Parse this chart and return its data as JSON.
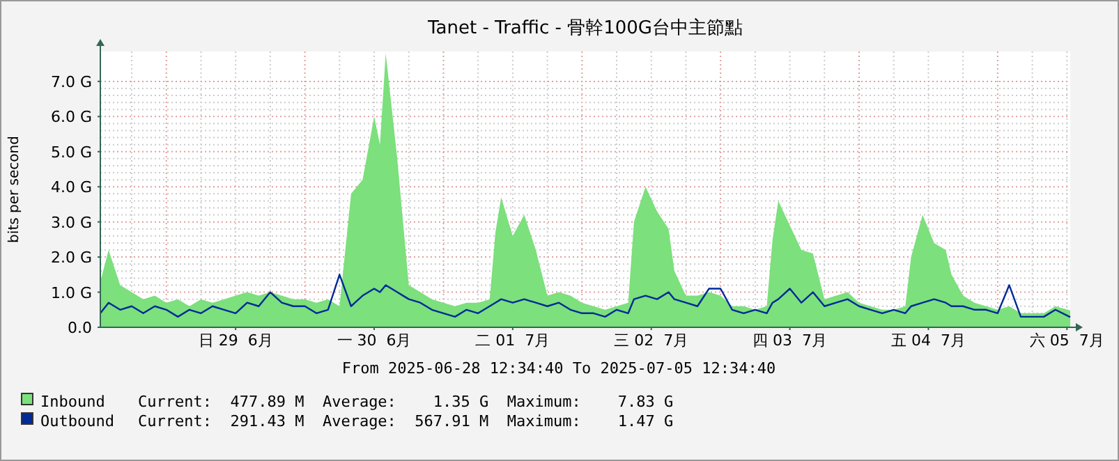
{
  "chart_data": {
    "type": "area",
    "title": "Tanet - Traffic - 骨幹100G台中主節點",
    "ylabel": "bits per second",
    "xlabel": "From 2025-06-28 12:34:40 To 2025-07-05 12:34:40",
    "xlim": [
      "2025-06-28T12:34",
      "2025-07-05T12:34"
    ],
    "xticks": [
      {
        "value": "2025-06-29T12:00",
        "label": "日 29  6月"
      },
      {
        "value": "2025-06-30T12:00",
        "label": "一 30  6月"
      },
      {
        "value": "2025-07-01T12:00",
        "label": "二 01  7月"
      },
      {
        "value": "2025-07-02T12:00",
        "label": "三 02  7月"
      },
      {
        "value": "2025-07-03T12:00",
        "label": "四 03  7月"
      },
      {
        "value": "2025-07-04T12:00",
        "label": "五 04  7月"
      },
      {
        "value": "2025-07-05T12:00",
        "label": "六 05  7月"
      }
    ],
    "ylim": [
      0,
      7.85
    ],
    "yticks": [
      {
        "value": 0,
        "label": "0.0"
      },
      {
        "value": 1,
        "label": "1.0 G"
      },
      {
        "value": 2,
        "label": "2.0 G"
      },
      {
        "value": 3,
        "label": "3.0 G"
      },
      {
        "value": 4,
        "label": "4.0 G"
      },
      {
        "value": 5,
        "label": "5.0 G"
      },
      {
        "value": 6,
        "label": "6.0 G"
      },
      {
        "value": 7,
        "label": "7.0 G"
      }
    ],
    "grid": true,
    "legend": "bottom",
    "x": [
      "2025-06-28T12:34",
      "2025-06-28T14:00",
      "2025-06-28T16:00",
      "2025-06-28T18:00",
      "2025-06-28T20:00",
      "2025-06-28T22:00",
      "2025-06-29T00:00",
      "2025-06-29T02:00",
      "2025-06-29T04:00",
      "2025-06-29T06:00",
      "2025-06-29T08:00",
      "2025-06-29T10:00",
      "2025-06-29T12:00",
      "2025-06-29T14:00",
      "2025-06-29T16:00",
      "2025-06-29T18:00",
      "2025-06-29T20:00",
      "2025-06-29T22:00",
      "2025-06-30T00:00",
      "2025-06-30T02:00",
      "2025-06-30T04:00",
      "2025-06-30T06:00",
      "2025-06-30T08:00",
      "2025-06-30T10:00",
      "2025-06-30T12:00",
      "2025-06-30T13:00",
      "2025-06-30T14:00",
      "2025-06-30T16:00",
      "2025-06-30T17:00",
      "2025-06-30T18:00",
      "2025-06-30T20:00",
      "2025-06-30T22:00",
      "2025-07-01T00:00",
      "2025-07-01T02:00",
      "2025-07-01T04:00",
      "2025-07-01T06:00",
      "2025-07-01T08:00",
      "2025-07-01T09:00",
      "2025-07-01T10:00",
      "2025-07-01T12:00",
      "2025-07-01T14:00",
      "2025-07-01T16:00",
      "2025-07-01T18:00",
      "2025-07-01T20:00",
      "2025-07-01T22:00",
      "2025-07-02T00:00",
      "2025-07-02T02:00",
      "2025-07-02T04:00",
      "2025-07-02T06:00",
      "2025-07-02T08:00",
      "2025-07-02T09:00",
      "2025-07-02T11:00",
      "2025-07-02T13:00",
      "2025-07-02T15:00",
      "2025-07-02T16:00",
      "2025-07-02T18:00",
      "2025-07-02T20:00",
      "2025-07-02T22:00",
      "2025-07-03T00:00",
      "2025-07-03T02:00",
      "2025-07-03T04:00",
      "2025-07-03T06:00",
      "2025-07-03T08:00",
      "2025-07-03T09:00",
      "2025-07-03T10:00",
      "2025-07-03T12:00",
      "2025-07-03T14:00",
      "2025-07-03T16:00",
      "2025-07-03T18:00",
      "2025-07-03T20:00",
      "2025-07-03T22:00",
      "2025-07-04T00:00",
      "2025-07-04T02:00",
      "2025-07-04T04:00",
      "2025-07-04T06:00",
      "2025-07-04T08:00",
      "2025-07-04T09:00",
      "2025-07-04T11:00",
      "2025-07-04T13:00",
      "2025-07-04T15:00",
      "2025-07-04T16:00",
      "2025-07-04T18:00",
      "2025-07-04T20:00",
      "2025-07-04T22:00",
      "2025-07-05T00:00",
      "2025-07-05T02:00",
      "2025-07-05T04:00",
      "2025-07-05T06:00",
      "2025-07-05T08:00",
      "2025-07-05T10:00",
      "2025-07-05T12:34"
    ],
    "series": [
      {
        "name": "Inbound",
        "color": "#7ce07c",
        "values": [
          1.3,
          2.2,
          1.2,
          1.0,
          0.8,
          0.9,
          0.7,
          0.8,
          0.6,
          0.8,
          0.7,
          0.8,
          0.9,
          1.0,
          0.9,
          1.0,
          0.9,
          0.8,
          0.8,
          0.7,
          0.8,
          0.6,
          3.8,
          4.2,
          6.0,
          5.2,
          7.8,
          4.8,
          3.0,
          1.2,
          1.0,
          0.8,
          0.7,
          0.6,
          0.7,
          0.7,
          0.8,
          2.7,
          3.7,
          2.6,
          3.2,
          2.2,
          0.9,
          1.0,
          0.9,
          0.7,
          0.6,
          0.5,
          0.6,
          0.7,
          3.0,
          4.0,
          3.3,
          2.8,
          1.6,
          0.9,
          0.9,
          1.0,
          0.9,
          0.6,
          0.6,
          0.5,
          0.6,
          2.5,
          3.6,
          2.9,
          2.2,
          2.1,
          0.8,
          0.9,
          1.0,
          0.7,
          0.6,
          0.5,
          0.5,
          0.6,
          2.0,
          3.2,
          2.4,
          2.2,
          1.5,
          0.9,
          0.7,
          0.6,
          0.5,
          0.6,
          0.4,
          0.4,
          0.4,
          0.6,
          0.48
        ]
      },
      {
        "name": "Outbound",
        "type": "line",
        "color": "#002a97",
        "values": [
          0.4,
          0.7,
          0.5,
          0.6,
          0.4,
          0.6,
          0.5,
          0.3,
          0.5,
          0.4,
          0.6,
          0.5,
          0.4,
          0.7,
          0.6,
          1.0,
          0.7,
          0.6,
          0.6,
          0.4,
          0.5,
          1.5,
          0.6,
          0.9,
          1.1,
          1.0,
          1.2,
          1.0,
          0.9,
          0.8,
          0.7,
          0.5,
          0.4,
          0.3,
          0.5,
          0.4,
          0.6,
          0.7,
          0.8,
          0.7,
          0.8,
          0.7,
          0.6,
          0.7,
          0.5,
          0.4,
          0.4,
          0.3,
          0.5,
          0.4,
          0.8,
          0.9,
          0.8,
          1.0,
          0.8,
          0.7,
          0.6,
          1.1,
          1.1,
          0.5,
          0.4,
          0.5,
          0.4,
          0.7,
          0.8,
          1.1,
          0.7,
          1.0,
          0.6,
          0.7,
          0.8,
          0.6,
          0.5,
          0.4,
          0.5,
          0.4,
          0.6,
          0.7,
          0.8,
          0.7,
          0.6,
          0.6,
          0.5,
          0.5,
          0.4,
          1.2,
          0.3,
          0.3,
          0.3,
          0.5,
          0.29
        ]
      }
    ],
    "annotations": [
      "Current:  477.89 M  Average:    1.35 G  Maximum:    7.83 G",
      "Current:  291.43 M  Average:  567.91 M  Maximum:    1.47 G"
    ]
  }
}
